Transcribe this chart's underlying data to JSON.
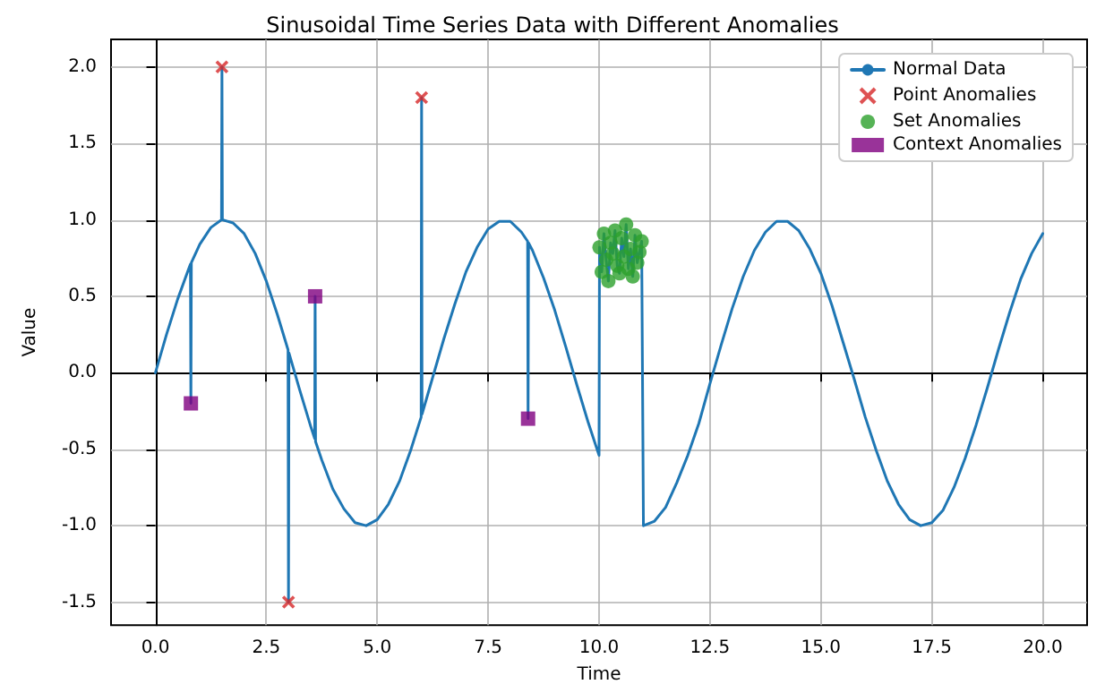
{
  "chart_data": {
    "type": "line",
    "title": "Sinusoidal Time Series Data with Different Anomalies",
    "xlabel": "Time",
    "ylabel": "Value",
    "xlim": [
      -1,
      21
    ],
    "xticks": [
      {
        "value": 0,
        "label": "0.0"
      },
      2.5,
      {
        "value": 5,
        "label": "5.0"
      },
      7.5,
      {
        "value": 10,
        "label": "10.0"
      },
      12.5,
      {
        "value": 15,
        "label": "15.0"
      },
      17.5,
      {
        "value": 20,
        "label": "20.0"
      }
    ],
    "ylim": [
      -1.65,
      2.18
    ],
    "yticks": [
      -1.5,
      {
        "value": -1,
        "label": "-1.0"
      },
      -0.5,
      {
        "value": 0,
        "label": "0.0"
      },
      0.5,
      {
        "value": 1,
        "label": "1.0"
      },
      1.5,
      {
        "value": 2,
        "label": "2.0"
      }
    ],
    "grid": true,
    "legend": "top right",
    "series": [
      {
        "name": "Normal Data",
        "type": "line",
        "color": "#1f77b4",
        "marker": "none",
        "line_style": "solid",
        "x": [
          0,
          0.25,
          0.5,
          0.75,
          0.79,
          0.8,
          0.81,
          1.0,
          1.25,
          1.49,
          1.5,
          1.51,
          1.75,
          2.0,
          2.25,
          2.5,
          2.75,
          2.99,
          3.0,
          3.01,
          3.25,
          3.5,
          3.59,
          3.6,
          3.61,
          3.75,
          4.0,
          4.25,
          4.5,
          4.75,
          5.0,
          5.25,
          5.5,
          5.75,
          5.99,
          6.0,
          6.01,
          6.25,
          6.5,
          6.75,
          7.0,
          7.25,
          7.5,
          7.75,
          8.0,
          8.25,
          8.39,
          8.4,
          8.41,
          8.5,
          8.75,
          9.0,
          9.25,
          9.5,
          9.75,
          10.0,
          10.01,
          10.06,
          10.11,
          10.16,
          10.21,
          10.26,
          10.31,
          10.36,
          10.41,
          10.46,
          10.51,
          10.56,
          10.61,
          10.66,
          10.71,
          10.76,
          10.81,
          10.86,
          10.91,
          10.96,
          11.0,
          11.25,
          11.5,
          11.75,
          12.0,
          12.25,
          12.5,
          12.75,
          13.0,
          13.25,
          13.5,
          13.75,
          14.0,
          14.25,
          14.5,
          14.75,
          15.0,
          15.25,
          15.5,
          15.75,
          16.0,
          16.25,
          16.5,
          16.75,
          17.0,
          17.25,
          17.5,
          17.75,
          18.0,
          18.25,
          18.5,
          18.75,
          19.0,
          19.25,
          19.5,
          19.75,
          20.0
        ],
        "values": [
          0,
          0.25,
          0.48,
          0.68,
          0.71,
          -0.2,
          0.72,
          0.84,
          0.95,
          1.0,
          2.0,
          1.0,
          0.98,
          0.91,
          0.78,
          0.6,
          0.38,
          0.15,
          -1.5,
          0.13,
          -0.11,
          -0.35,
          -0.43,
          0.5,
          -0.45,
          -0.57,
          -0.76,
          -0.89,
          -0.98,
          -1.0,
          -0.96,
          -0.86,
          -0.71,
          -0.51,
          -0.29,
          1.8,
          -0.27,
          -0.03,
          0.22,
          0.45,
          0.66,
          0.82,
          0.94,
          0.99,
          0.99,
          0.92,
          0.86,
          -0.3,
          0.85,
          0.8,
          0.62,
          0.41,
          0.17,
          -0.08,
          -0.32,
          -0.54,
          0.82,
          0.66,
          0.91,
          0.74,
          0.6,
          0.85,
          0.78,
          0.93,
          0.7,
          0.65,
          0.88,
          0.76,
          0.97,
          0.68,
          0.81,
          0.63,
          0.9,
          0.72,
          0.79,
          0.86,
          -1.0,
          -0.97,
          -0.88,
          -0.72,
          -0.54,
          -0.33,
          -0.07,
          0.18,
          0.42,
          0.63,
          0.8,
          0.92,
          0.99,
          0.99,
          0.93,
          0.81,
          0.65,
          0.44,
          0.2,
          -0.04,
          -0.29,
          -0.51,
          -0.71,
          -0.86,
          -0.96,
          -1.0,
          -0.98,
          -0.9,
          -0.75,
          -0.56,
          -0.34,
          -0.1,
          0.15,
          0.39,
          0.61,
          0.78,
          0.91
        ]
      },
      {
        "name": "Point Anomalies",
        "type": "scatter",
        "color": "#d62728",
        "marker": "cross",
        "x": [
          1.5,
          3.0,
          6.0
        ],
        "values": [
          2.0,
          -1.5,
          1.8
        ]
      },
      {
        "name": "Set Anomalies",
        "type": "scatter",
        "color": "#2ca02c",
        "marker": "circle",
        "x": [
          10.01,
          10.06,
          10.11,
          10.16,
          10.21,
          10.26,
          10.31,
          10.36,
          10.41,
          10.46,
          10.51,
          10.56,
          10.61,
          10.66,
          10.71,
          10.76,
          10.81,
          10.86,
          10.91,
          10.96
        ],
        "values": [
          0.82,
          0.66,
          0.91,
          0.74,
          0.6,
          0.85,
          0.78,
          0.93,
          0.7,
          0.65,
          0.88,
          0.76,
          0.97,
          0.68,
          0.81,
          0.63,
          0.9,
          0.72,
          0.79,
          0.86
        ]
      },
      {
        "name": "Context Anomalies",
        "type": "scatter",
        "color": "#800080",
        "marker": "square",
        "x": [
          0.8,
          3.6,
          8.4
        ],
        "values": [
          -0.2,
          0.5,
          -0.3
        ]
      }
    ]
  }
}
